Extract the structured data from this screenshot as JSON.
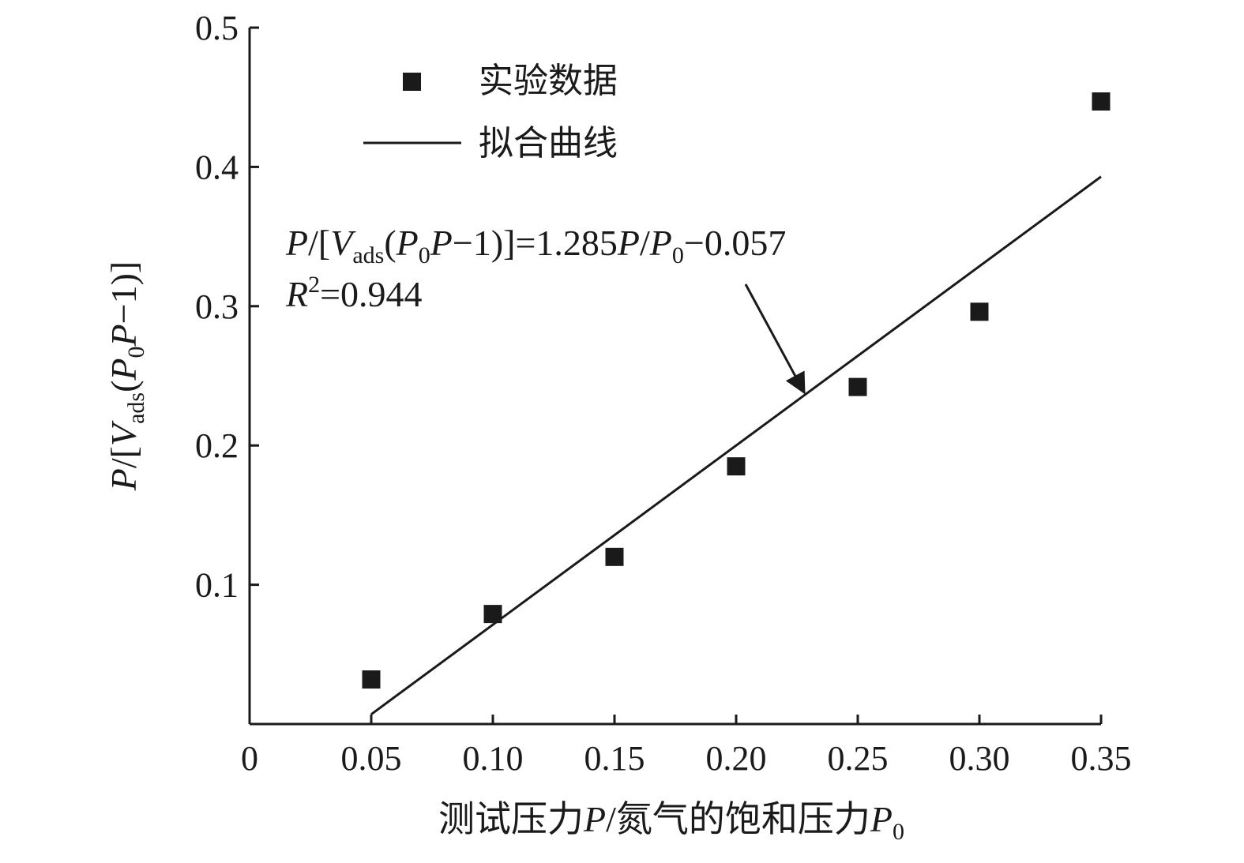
{
  "chart_data": {
    "type": "scatter",
    "xlim": [
      0,
      0.35
    ],
    "ylim": [
      0,
      0.5
    ],
    "x_ticks": [
      "0",
      "0.05",
      "0.10",
      "0.15",
      "0.20",
      "0.25",
      "0.30",
      "0.35"
    ],
    "x_tick_values": [
      0,
      0.05,
      0.1,
      0.15,
      0.2,
      0.25,
      0.3,
      0.35
    ],
    "y_ticks": [
      "0.1",
      "0.2",
      "0.3",
      "0.4",
      "0.5"
    ],
    "y_tick_values": [
      0.1,
      0.2,
      0.3,
      0.4,
      0.5
    ],
    "xlabel_text": "测试压力",
    "xlabel_p": "P",
    "xlabel_mid": "/氮气的饱和压力",
    "xlabel_p0": "P",
    "xlabel_p0_sub": "0",
    "ylabel": {
      "p": "P",
      "open": "/[",
      "v": "V",
      "ads": "ads",
      "paren": "(",
      "p0": "P",
      "zero": "0",
      "p2": "P",
      "tail": "−1)]"
    },
    "series": [
      {
        "name": "实验数据",
        "kind": "scatter",
        "color": "#1a1a1a",
        "x": [
          0.05,
          0.1,
          0.15,
          0.2,
          0.25,
          0.3,
          0.35
        ],
        "y": [
          0.032,
          0.079,
          0.12,
          0.185,
          0.242,
          0.296,
          0.447
        ]
      },
      {
        "name": "拟合曲线",
        "kind": "line",
        "color": "#1a1a1a",
        "x": [
          0.05,
          0.35
        ],
        "y": [
          0.007,
          0.393
        ]
      }
    ],
    "legend": {
      "position": "top-left",
      "items": [
        "实验数据",
        "拟合曲线"
      ]
    },
    "annotation": {
      "p": "P",
      "open": "/[",
      "v": "V",
      "ads": "ads",
      "paren": "(",
      "p0": "P",
      "zero": "0",
      "p2": "P",
      "mid": "−1)]=1.285",
      "p3": "P",
      "slash": "/",
      "p4": "P",
      "zero2": "0",
      "tail": "−0.057",
      "r": "R",
      "sq": "2",
      "r_value": "=0.944",
      "arrow_target": {
        "x": 0.228,
        "y": 0.238
      }
    }
  }
}
